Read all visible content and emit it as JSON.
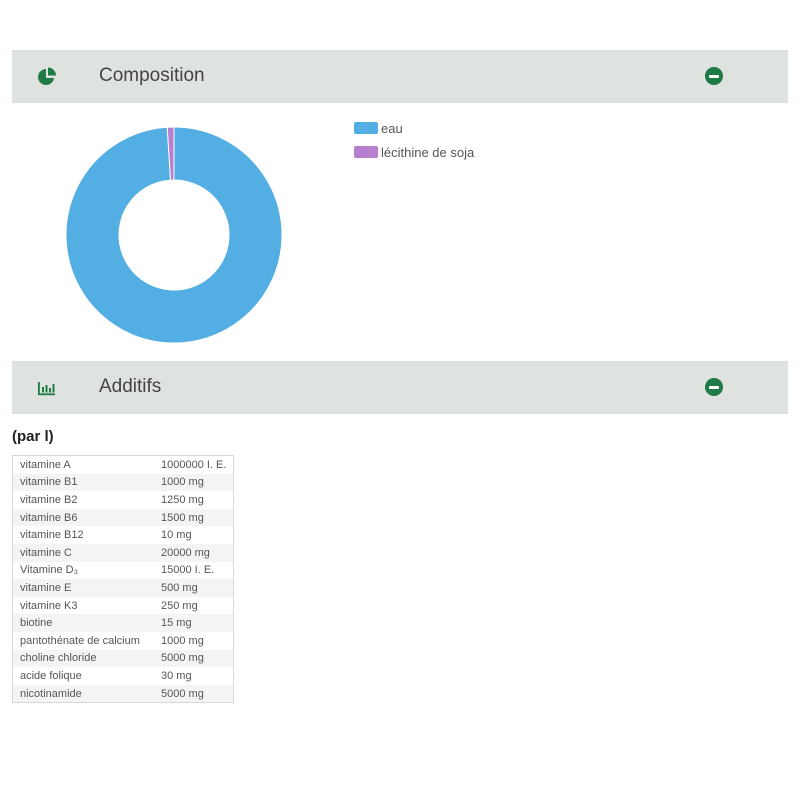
{
  "composition": {
    "title": "Composition",
    "legend": [
      {
        "label": "eau",
        "color": "#53aee3"
      },
      {
        "label": "lécithine de soja",
        "color": "#b87fcf"
      }
    ]
  },
  "chart_data": {
    "type": "pie",
    "donut": true,
    "categories": [
      "eau",
      "lécithine de soja"
    ],
    "values": [
      99,
      1
    ],
    "colors": [
      "#53aee3",
      "#b87fcf"
    ],
    "title": "",
    "legend_position": "right"
  },
  "additifs": {
    "title": "Additifs",
    "unit_label": "(par l)",
    "rows": [
      {
        "name": "vitamine A",
        "value": "1000000 I. E."
      },
      {
        "name": "vitamine B1",
        "value": "1000 mg"
      },
      {
        "name": "vitamine B2",
        "value": "1250 mg"
      },
      {
        "name": "vitamine B6",
        "value": "1500 mg"
      },
      {
        "name": "vitamine B12",
        "value": "10 mg"
      },
      {
        "name": "vitamine C",
        "value": "20000 mg"
      },
      {
        "name": "Vitamine D₃",
        "value": "15000 I. E."
      },
      {
        "name": "vitamine E",
        "value": "500 mg"
      },
      {
        "name": "vitamine K3",
        "value": "250 mg"
      },
      {
        "name": "biotine",
        "value": "15 mg"
      },
      {
        "name": "pantothénate de calcium",
        "value": "1000 mg"
      },
      {
        "name": "choline chloride",
        "value": "5000 mg"
      },
      {
        "name": "acide folique",
        "value": "30 mg"
      },
      {
        "name": "nicotinamide",
        "value": "5000 mg"
      }
    ]
  },
  "icons": {
    "composition": "pie-chart-icon",
    "additifs": "bar-chart-icon",
    "collapse": "minus-circle-icon"
  },
  "colors": {
    "accent": "#1f7a45",
    "header_bg": "#dfe3df"
  }
}
